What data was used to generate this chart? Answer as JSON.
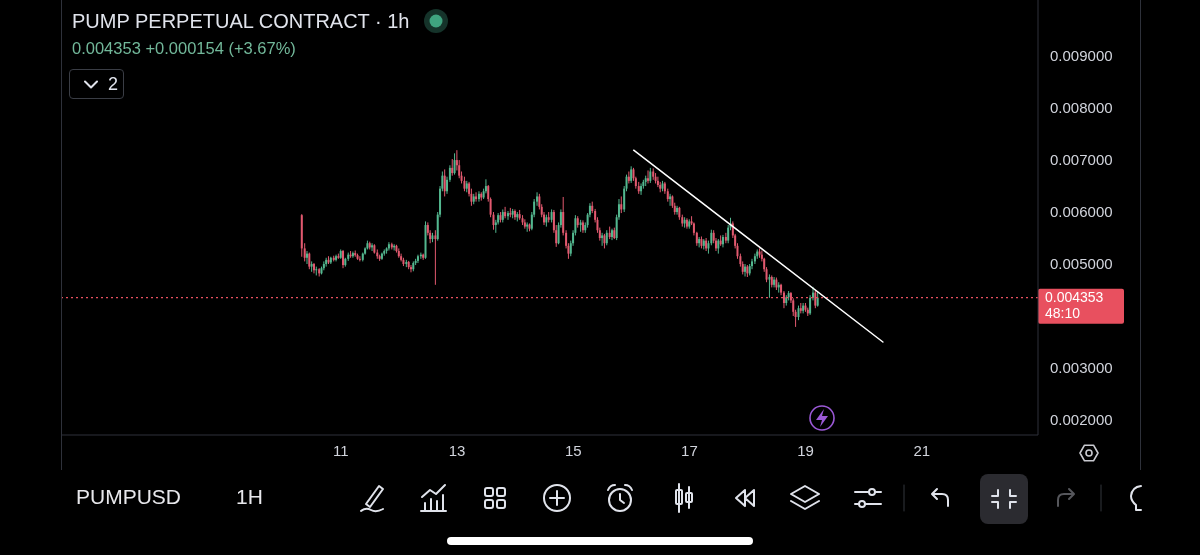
{
  "chart_data": {
    "type": "candlestick",
    "title": "PUMP PERPETUAL CONTRACT · 1h",
    "subtitle": "0.004353 +0.000154 (+3.67%)",
    "annotations": [
      "2",
      "PUMPUSD",
      "1H"
    ],
    "xlim": [
      6.2,
      23
    ],
    "xticks": [
      11,
      13,
      15,
      17,
      19,
      21
    ],
    "ylim": [
      0.00171,
      0.01008
    ],
    "yticks": [
      {
        "value": 0.002,
        "label": "0.002000"
      },
      {
        "value": 0.003,
        "label": "0.003000"
      },
      {
        "value": 0.005,
        "label": "0.005000"
      },
      {
        "value": 0.006,
        "label": "0.006000"
      },
      {
        "value": 0.007,
        "label": "0.007000"
      },
      {
        "value": 0.008,
        "label": "0.008000"
      },
      {
        "value": 0.009,
        "label": "0.009000"
      }
    ],
    "ref_lines": [
      {
        "axis": "y",
        "value": 0.004353,
        "label": "0.004353 48:10",
        "color": "#e8505f",
        "line_style": "dotted"
      }
    ],
    "series": [
      {
        "x": [
          10.33,
          10.38,
          10.42,
          10.46,
          10.5,
          10.54,
          10.58,
          10.63,
          10.67,
          10.71,
          10.75,
          10.79,
          10.83,
          10.88,
          10.92,
          10.96,
          11,
          11.04,
          11.08,
          11.13,
          11.17,
          11.21,
          11.25,
          11.29,
          11.33,
          11.38,
          11.42,
          11.46,
          11.5,
          11.54,
          11.58,
          11.63,
          11.67,
          11.71,
          11.75,
          11.79,
          11.83,
          11.88,
          11.92,
          11.96,
          12,
          12.04,
          12.08,
          12.13,
          12.17,
          12.21,
          12.25,
          12.29,
          12.33,
          12.38,
          12.42,
          12.46,
          12.5,
          12.54,
          12.58,
          12.63,
          12.67,
          12.71,
          12.75,
          12.79,
          12.83,
          12.88,
          12.92,
          12.96,
          13,
          13.04,
          13.08,
          13.13,
          13.17,
          13.21,
          13.25,
          13.29,
          13.33,
          13.38,
          13.42,
          13.46,
          13.5,
          13.54,
          13.58,
          13.63,
          13.67,
          13.71,
          13.75,
          13.79,
          13.83,
          13.88,
          13.92,
          13.96,
          14,
          14.04,
          14.08,
          14.13,
          14.17,
          14.21,
          14.25,
          14.29,
          14.33,
          14.38,
          14.42,
          14.46,
          14.5,
          14.54,
          14.58,
          14.63,
          14.67,
          14.71,
          14.75,
          14.79,
          14.83,
          14.88,
          14.92,
          14.96,
          15,
          15.04,
          15.08,
          15.13,
          15.17,
          15.21,
          15.25,
          15.29,
          15.33,
          15.38,
          15.42,
          15.46,
          15.5,
          15.54,
          15.58,
          15.63,
          15.67,
          15.71,
          15.75,
          15.79,
          15.83,
          15.88,
          15.92,
          15.96,
          16,
          16.04,
          16.08,
          16.13,
          16.17,
          16.21,
          16.25,
          16.29,
          16.33,
          16.38,
          16.42,
          16.46,
          16.5,
          16.54,
          16.58,
          16.63,
          16.67,
          16.71,
          16.75,
          16.79,
          16.83,
          16.88,
          16.92,
          16.96,
          17,
          17.04,
          17.08,
          17.13,
          17.17,
          17.21,
          17.25,
          17.29,
          17.33,
          17.38,
          17.42,
          17.46,
          17.5,
          17.54,
          17.58,
          17.63,
          17.67,
          17.71,
          17.75,
          17.79,
          17.83,
          17.88,
          17.92,
          17.96,
          18,
          18.04,
          18.08,
          18.13,
          18.17,
          18.21,
          18.25,
          18.29,
          18.33,
          18.38,
          18.42,
          18.46,
          18.5,
          18.54,
          18.58,
          18.63,
          18.67,
          18.71,
          18.75,
          18.79,
          18.83,
          18.88,
          18.92,
          18.96,
          19,
          19.04,
          19.08,
          19.13,
          19.17,
          19.21
        ],
        "ohlc": [
          [
            0.00594,
            0.00596,
            0.00514,
            0.0053
          ],
          [
            0.0053,
            0.0054,
            0.00505,
            0.00512
          ],
          [
            0.00512,
            0.00525,
            0.005,
            0.0052
          ],
          [
            0.0052,
            0.00522,
            0.0049,
            0.00495
          ],
          [
            0.00495,
            0.00505,
            0.00485,
            0.005
          ],
          [
            0.005,
            0.00502,
            0.00482,
            0.00488
          ],
          [
            0.00488,
            0.00495,
            0.00478,
            0.0049
          ],
          [
            0.0049,
            0.00492,
            0.00476,
            0.00482
          ],
          [
            0.00482,
            0.00495,
            0.0048,
            0.00492
          ],
          [
            0.00492,
            0.00505,
            0.00488,
            0.005
          ],
          [
            0.005,
            0.00512,
            0.00495,
            0.00508
          ],
          [
            0.00508,
            0.00515,
            0.005,
            0.00503
          ],
          [
            0.00503,
            0.00514,
            0.005,
            0.00512
          ],
          [
            0.00512,
            0.00516,
            0.00505,
            0.00508
          ],
          [
            0.00508,
            0.00518,
            0.00505,
            0.00515
          ],
          [
            0.00515,
            0.0052,
            0.0051,
            0.00512
          ],
          [
            0.00512,
            0.00528,
            0.0051,
            0.00525
          ],
          [
            0.00525,
            0.00527,
            0.00492,
            0.00498
          ],
          [
            0.00498,
            0.00512,
            0.00495,
            0.0051
          ],
          [
            0.0051,
            0.00522,
            0.00506,
            0.00518
          ],
          [
            0.00518,
            0.00525,
            0.00512,
            0.00515
          ],
          [
            0.00515,
            0.00524,
            0.00512,
            0.00521
          ],
          [
            0.00521,
            0.00526,
            0.00514,
            0.00517
          ],
          [
            0.00517,
            0.0052,
            0.00508,
            0.0051
          ],
          [
            0.0051,
            0.00515,
            0.00505,
            0.00508
          ],
          [
            0.00508,
            0.00522,
            0.00505,
            0.0052
          ],
          [
            0.0052,
            0.00532,
            0.00518,
            0.0053
          ],
          [
            0.0053,
            0.00545,
            0.00528,
            0.0054
          ],
          [
            0.0054,
            0.00543,
            0.00528,
            0.00532
          ],
          [
            0.00532,
            0.0054,
            0.00525,
            0.00536
          ],
          [
            0.00536,
            0.00538,
            0.0052,
            0.00522
          ],
          [
            0.00522,
            0.00528,
            0.0051,
            0.00515
          ],
          [
            0.00515,
            0.00518,
            0.00506,
            0.0051
          ],
          [
            0.0051,
            0.00522,
            0.00508,
            0.0052
          ],
          [
            0.0052,
            0.00528,
            0.00516,
            0.00525
          ],
          [
            0.00525,
            0.00532,
            0.0052,
            0.0053
          ],
          [
            0.0053,
            0.00542,
            0.00526,
            0.00538
          ],
          [
            0.00538,
            0.00541,
            0.00528,
            0.00532
          ],
          [
            0.00532,
            0.00538,
            0.00526,
            0.00535
          ],
          [
            0.00535,
            0.00537,
            0.00522,
            0.00525
          ],
          [
            0.00525,
            0.0053,
            0.00512,
            0.00515
          ],
          [
            0.00515,
            0.0052,
            0.00505,
            0.00508
          ],
          [
            0.00508,
            0.00512,
            0.00496,
            0.005
          ],
          [
            0.005,
            0.00508,
            0.00494,
            0.00504
          ],
          [
            0.00504,
            0.00506,
            0.0049,
            0.00494
          ],
          [
            0.00494,
            0.00498,
            0.00484,
            0.0049
          ],
          [
            0.0049,
            0.00505,
            0.00486,
            0.00502
          ],
          [
            0.00502,
            0.0051,
            0.00498,
            0.00506
          ],
          [
            0.00506,
            0.00518,
            0.00502,
            0.00515
          ],
          [
            0.00515,
            0.00522,
            0.0051,
            0.00518
          ],
          [
            0.00518,
            0.0052,
            0.00508,
            0.00512
          ],
          [
            0.00512,
            0.00582,
            0.0051,
            0.00575
          ],
          [
            0.00575,
            0.0058,
            0.00555,
            0.0056
          ],
          [
            0.0056,
            0.00565,
            0.0054,
            0.00548
          ],
          [
            0.00548,
            0.0056,
            0.00542,
            0.00555
          ],
          [
            0.00555,
            0.00565,
            0.0046,
            0.00548
          ],
          [
            0.00548,
            0.006,
            0.00545,
            0.00595
          ],
          [
            0.00595,
            0.0065,
            0.0059,
            0.00645
          ],
          [
            0.00645,
            0.00678,
            0.0064,
            0.0067
          ],
          [
            0.0067,
            0.00682,
            0.0063,
            0.0064
          ],
          [
            0.0064,
            0.00668,
            0.00635,
            0.00662
          ],
          [
            0.00662,
            0.0069,
            0.00658,
            0.00685
          ],
          [
            0.00685,
            0.00702,
            0.0067,
            0.00675
          ],
          [
            0.00675,
            0.00713,
            0.00672,
            0.007
          ],
          [
            0.007,
            0.00719,
            0.0068,
            0.0069
          ],
          [
            0.0069,
            0.007,
            0.00665,
            0.0067
          ],
          [
            0.0067,
            0.00678,
            0.00655,
            0.0066
          ],
          [
            0.0066,
            0.00668,
            0.0064,
            0.00645
          ],
          [
            0.00645,
            0.0066,
            0.00638,
            0.00655
          ],
          [
            0.00655,
            0.00658,
            0.0063,
            0.00635
          ],
          [
            0.00635,
            0.00645,
            0.00612,
            0.0062
          ],
          [
            0.0062,
            0.00635,
            0.00615,
            0.0063
          ],
          [
            0.0063,
            0.00638,
            0.0062,
            0.00625
          ],
          [
            0.00625,
            0.0064,
            0.0062,
            0.00635
          ],
          [
            0.00635,
            0.00638,
            0.00622,
            0.00628
          ],
          [
            0.00628,
            0.00645,
            0.00625,
            0.0064
          ],
          [
            0.0064,
            0.00663,
            0.00636,
            0.0065
          ],
          [
            0.0065,
            0.00652,
            0.0062,
            0.00625
          ],
          [
            0.00625,
            0.00628,
            0.0059,
            0.00595
          ],
          [
            0.00595,
            0.006,
            0.00566,
            0.00575
          ],
          [
            0.00575,
            0.00585,
            0.0056,
            0.0058
          ],
          [
            0.0058,
            0.00598,
            0.00576,
            0.00594
          ],
          [
            0.00594,
            0.006,
            0.0058,
            0.00585
          ],
          [
            0.00585,
            0.00605,
            0.0058,
            0.006
          ],
          [
            0.006,
            0.0061,
            0.00588,
            0.00592
          ],
          [
            0.00592,
            0.00602,
            0.00585,
            0.00598
          ],
          [
            0.00598,
            0.00608,
            0.0059,
            0.00595
          ],
          [
            0.00595,
            0.00606,
            0.00588,
            0.00602
          ],
          [
            0.00602,
            0.00605,
            0.00585,
            0.0059
          ],
          [
            0.0059,
            0.006,
            0.00582,
            0.00596
          ],
          [
            0.00596,
            0.00604,
            0.00585,
            0.00588
          ],
          [
            0.00588,
            0.00594,
            0.00575,
            0.0058
          ],
          [
            0.0058,
            0.00586,
            0.00568,
            0.00572
          ],
          [
            0.00572,
            0.0058,
            0.00562,
            0.00576
          ],
          [
            0.00576,
            0.00578,
            0.00563,
            0.00568
          ],
          [
            0.00568,
            0.006,
            0.00565,
            0.00595
          ],
          [
            0.00595,
            0.00625,
            0.0059,
            0.0062
          ],
          [
            0.0062,
            0.00638,
            0.00612,
            0.0063
          ],
          [
            0.0063,
            0.00635,
            0.00605,
            0.0061
          ],
          [
            0.0061,
            0.00615,
            0.0059,
            0.00595
          ],
          [
            0.00595,
            0.006,
            0.00575,
            0.0058
          ],
          [
            0.0058,
            0.00595,
            0.00572,
            0.0059
          ],
          [
            0.0059,
            0.006,
            0.0058,
            0.00585
          ],
          [
            0.00585,
            0.00605,
            0.0058,
            0.006
          ],
          [
            0.006,
            0.00604,
            0.0056,
            0.00565
          ],
          [
            0.00565,
            0.00575,
            0.00533,
            0.0054
          ],
          [
            0.0054,
            0.0058,
            0.00538,
            0.00575
          ],
          [
            0.00575,
            0.00605,
            0.0057,
            0.006
          ],
          [
            0.006,
            0.00629,
            0.00555,
            0.0056
          ],
          [
            0.0056,
            0.00565,
            0.0053,
            0.00535
          ],
          [
            0.00535,
            0.0054,
            0.0051,
            0.0052
          ],
          [
            0.0052,
            0.00545,
            0.00515,
            0.0054
          ],
          [
            0.0054,
            0.00565,
            0.00535,
            0.0056
          ],
          [
            0.0056,
            0.00594,
            0.00555,
            0.00588
          ],
          [
            0.00588,
            0.00592,
            0.0057,
            0.00575
          ],
          [
            0.00575,
            0.00585,
            0.00562,
            0.0058
          ],
          [
            0.0058,
            0.00584,
            0.0056,
            0.00565
          ],
          [
            0.00565,
            0.0058,
            0.0056,
            0.00575
          ],
          [
            0.00575,
            0.00598,
            0.0057,
            0.00595
          ],
          [
            0.00595,
            0.00617,
            0.0059,
            0.00612
          ],
          [
            0.00612,
            0.0062,
            0.00598,
            0.00602
          ],
          [
            0.00602,
            0.00606,
            0.0058,
            0.00585
          ],
          [
            0.00585,
            0.0059,
            0.0056,
            0.00565
          ],
          [
            0.00565,
            0.0057,
            0.00545,
            0.0055
          ],
          [
            0.0055,
            0.0056,
            0.00535,
            0.00555
          ],
          [
            0.00555,
            0.00558,
            0.0053,
            0.0054
          ],
          [
            0.0054,
            0.00565,
            0.00536,
            0.0056
          ],
          [
            0.0056,
            0.00572,
            0.00548,
            0.00552
          ],
          [
            0.00552,
            0.00568,
            0.00546,
            0.00565
          ],
          [
            0.00565,
            0.0057,
            0.00548,
            0.0055
          ],
          [
            0.0055,
            0.00595,
            0.00546,
            0.0059
          ],
          [
            0.0059,
            0.00625,
            0.00585,
            0.00615
          ],
          [
            0.00615,
            0.0063,
            0.00598,
            0.00605
          ],
          [
            0.00605,
            0.0065,
            0.006,
            0.00645
          ],
          [
            0.00645,
            0.00672,
            0.0064,
            0.00668
          ],
          [
            0.00668,
            0.00678,
            0.00655,
            0.0066
          ],
          [
            0.0066,
            0.00688,
            0.00656,
            0.00682
          ],
          [
            0.00682,
            0.00685,
            0.0066,
            0.00665
          ],
          [
            0.00665,
            0.00668,
            0.00645,
            0.0065
          ],
          [
            0.0065,
            0.00658,
            0.00635,
            0.0064
          ],
          [
            0.0064,
            0.00655,
            0.00633,
            0.0065
          ],
          [
            0.0065,
            0.00662,
            0.00645,
            0.00658
          ],
          [
            0.00658,
            0.0067,
            0.0065,
            0.00665
          ],
          [
            0.00665,
            0.0068,
            0.00655,
            0.0066
          ],
          [
            0.0066,
            0.00685,
            0.00656,
            0.00678
          ],
          [
            0.00678,
            0.00684,
            0.00662,
            0.00668
          ],
          [
            0.00668,
            0.00675,
            0.00655,
            0.0066
          ],
          [
            0.0066,
            0.00668,
            0.00648,
            0.00652
          ],
          [
            0.00652,
            0.00658,
            0.00638,
            0.00645
          ],
          [
            0.00645,
            0.0066,
            0.0064,
            0.00655
          ],
          [
            0.00655,
            0.00658,
            0.00635,
            0.0064
          ],
          [
            0.0064,
            0.00645,
            0.0062,
            0.00625
          ],
          [
            0.00625,
            0.00635,
            0.00612,
            0.0063
          ],
          [
            0.0063,
            0.00632,
            0.00608,
            0.00612
          ],
          [
            0.00612,
            0.00618,
            0.00595,
            0.006
          ],
          [
            0.006,
            0.00612,
            0.00595,
            0.00608
          ],
          [
            0.00608,
            0.0061,
            0.00585,
            0.0059
          ],
          [
            0.0059,
            0.00595,
            0.00572,
            0.00578
          ],
          [
            0.00578,
            0.0059,
            0.0057,
            0.00585
          ],
          [
            0.00585,
            0.00588,
            0.00568,
            0.00572
          ],
          [
            0.00572,
            0.00586,
            0.00568,
            0.00582
          ],
          [
            0.00582,
            0.00592,
            0.00575,
            0.00578
          ],
          [
            0.00578,
            0.0058,
            0.00555,
            0.0056
          ],
          [
            0.0056,
            0.00562,
            0.00535,
            0.0054
          ],
          [
            0.0054,
            0.00552,
            0.00532,
            0.00548
          ],
          [
            0.00548,
            0.00553,
            0.0053,
            0.00535
          ],
          [
            0.00535,
            0.00548,
            0.00528,
            0.00545
          ],
          [
            0.00545,
            0.0055,
            0.00525,
            0.0053
          ],
          [
            0.0053,
            0.00545,
            0.0052,
            0.0054
          ],
          [
            0.0054,
            0.00566,
            0.00536,
            0.0056
          ],
          [
            0.0056,
            0.00565,
            0.0054,
            0.00545
          ],
          [
            0.00545,
            0.0055,
            0.00525,
            0.0053
          ],
          [
            0.0053,
            0.00548,
            0.0052,
            0.00545
          ],
          [
            0.00545,
            0.00555,
            0.00535,
            0.00538
          ],
          [
            0.00538,
            0.00556,
            0.00532,
            0.00552
          ],
          [
            0.00552,
            0.0056,
            0.0054,
            0.00545
          ],
          [
            0.00545,
            0.00575,
            0.0054,
            0.0057
          ],
          [
            0.0057,
            0.00589,
            0.00565,
            0.00578
          ],
          [
            0.00578,
            0.00582,
            0.0055,
            0.00555
          ],
          [
            0.00555,
            0.00558,
            0.0053,
            0.00535
          ],
          [
            0.00535,
            0.0054,
            0.0051,
            0.00515
          ],
          [
            0.00515,
            0.0052,
            0.00495,
            0.005
          ],
          [
            0.005,
            0.00505,
            0.0048,
            0.00485
          ],
          [
            0.00485,
            0.005,
            0.00476,
            0.00495
          ],
          [
            0.00495,
            0.00498,
            0.00475,
            0.00482
          ],
          [
            0.00482,
            0.005,
            0.00478,
            0.00496
          ],
          [
            0.00496,
            0.0051,
            0.0049,
            0.00505
          ],
          [
            0.00505,
            0.0052,
            0.005,
            0.00515
          ],
          [
            0.00515,
            0.00528,
            0.0051,
            0.00524
          ],
          [
            0.00524,
            0.0053,
            0.00512,
            0.00518
          ],
          [
            0.00518,
            0.00526,
            0.00505,
            0.0051
          ],
          [
            0.0051,
            0.00512,
            0.00485,
            0.0049
          ],
          [
            0.0049,
            0.00494,
            0.00465,
            0.0047
          ],
          [
            0.0047,
            0.0048,
            0.00435,
            0.00475
          ],
          [
            0.00475,
            0.00478,
            0.00455,
            0.0046
          ],
          [
            0.0046,
            0.00475,
            0.00455,
            0.0047
          ],
          [
            0.0047,
            0.00474,
            0.0045,
            0.00455
          ],
          [
            0.00455,
            0.00465,
            0.00445,
            0.0046
          ],
          [
            0.0046,
            0.00462,
            0.0044,
            0.00445
          ],
          [
            0.00445,
            0.00448,
            0.00415,
            0.00425
          ],
          [
            0.00425,
            0.0044,
            0.0042,
            0.00436
          ],
          [
            0.00436,
            0.00448,
            0.0043,
            0.00444
          ],
          [
            0.00444,
            0.00446,
            0.00425,
            0.0043
          ],
          [
            0.0043,
            0.00434,
            0.004,
            0.00408
          ],
          [
            0.00408,
            0.00412,
            0.00379,
            0.00398
          ],
          [
            0.00398,
            0.0042,
            0.00392,
            0.00415
          ],
          [
            0.00415,
            0.00425,
            0.00405,
            0.0041
          ],
          [
            0.0041,
            0.00425,
            0.00405,
            0.0042
          ],
          [
            0.0042,
            0.00425,
            0.00408,
            0.00412
          ],
          [
            0.00412,
            0.00416,
            0.004,
            0.00405
          ],
          [
            0.00405,
            0.0044,
            0.00402,
            0.00435
          ],
          [
            0.00435,
            0.00456,
            0.0043,
            0.00445
          ],
          [
            0.00445,
            0.0045,
            0.00415,
            0.0042
          ],
          [
            0.004199,
            0.00448,
            0.00418,
            0.004353
          ]
        ],
        "colors": [
          "#e2596f",
          "#e2596f",
          "#53b78f",
          "#e2596f",
          "#53b78f",
          "#e2596f",
          "#53b78f",
          "#e2596f",
          "#53b78f",
          "#53b78f",
          "#53b78f",
          "#e2596f",
          "#53b78f",
          "#e2596f",
          "#53b78f",
          "#e2596f",
          "#53b78f",
          "#e2596f",
          "#53b78f",
          "#53b78f",
          "#e2596f",
          "#53b78f",
          "#e2596f",
          "#e2596f",
          "#e2596f",
          "#53b78f",
          "#53b78f",
          "#53b78f",
          "#e2596f",
          "#53b78f",
          "#e2596f",
          "#e2596f",
          "#e2596f",
          "#53b78f",
          "#53b78f",
          "#53b78f",
          "#53b78f",
          "#e2596f",
          "#53b78f",
          "#e2596f",
          "#e2596f",
          "#e2596f",
          "#e2596f",
          "#53b78f",
          "#e2596f",
          "#e2596f",
          "#53b78f",
          "#53b78f",
          "#53b78f",
          "#53b78f",
          "#e2596f",
          "#53b78f",
          "#e2596f",
          "#e2596f",
          "#53b78f",
          "#e2596f",
          "#53b78f",
          "#53b78f",
          "#53b78f",
          "#e2596f",
          "#53b78f",
          "#53b78f",
          "#e2596f",
          "#53b78f",
          "#e2596f",
          "#e2596f",
          "#e2596f",
          "#e2596f",
          "#53b78f",
          "#e2596f",
          "#e2596f",
          "#53b78f",
          "#e2596f",
          "#53b78f",
          "#e2596f",
          "#53b78f",
          "#53b78f",
          "#e2596f",
          "#e2596f",
          "#e2596f",
          "#53b78f",
          "#53b78f",
          "#e2596f",
          "#53b78f",
          "#e2596f",
          "#53b78f",
          "#e2596f",
          "#53b78f",
          "#e2596f",
          "#53b78f",
          "#e2596f",
          "#e2596f",
          "#e2596f",
          "#53b78f",
          "#e2596f",
          "#53b78f",
          "#53b78f",
          "#53b78f",
          "#e2596f",
          "#e2596f",
          "#e2596f",
          "#53b78f",
          "#e2596f",
          "#53b78f",
          "#e2596f",
          "#e2596f",
          "#53b78f",
          "#53b78f",
          "#e2596f",
          "#e2596f",
          "#e2596f",
          "#53b78f",
          "#53b78f",
          "#53b78f",
          "#e2596f",
          "#53b78f",
          "#e2596f",
          "#53b78f",
          "#53b78f",
          "#53b78f",
          "#e2596f",
          "#e2596f",
          "#e2596f",
          "#e2596f",
          "#53b78f",
          "#e2596f",
          "#53b78f",
          "#e2596f",
          "#53b78f",
          "#e2596f",
          "#53b78f",
          "#53b78f",
          "#e2596f",
          "#53b78f",
          "#53b78f",
          "#e2596f",
          "#53b78f",
          "#e2596f",
          "#e2596f",
          "#e2596f",
          "#53b78f",
          "#53b78f",
          "#53b78f",
          "#e2596f",
          "#53b78f",
          "#e2596f",
          "#e2596f",
          "#e2596f",
          "#e2596f",
          "#53b78f",
          "#e2596f",
          "#e2596f",
          "#53b78f",
          "#e2596f",
          "#e2596f",
          "#53b78f",
          "#e2596f",
          "#e2596f",
          "#53b78f",
          "#e2596f",
          "#53b78f",
          "#e2596f",
          "#e2596f",
          "#e2596f",
          "#53b78f",
          "#e2596f",
          "#53b78f",
          "#e2596f",
          "#53b78f",
          "#53b78f",
          "#e2596f",
          "#e2596f",
          "#53b78f",
          "#e2596f",
          "#53b78f",
          "#e2596f",
          "#53b78f",
          "#53b78f",
          "#e2596f",
          "#e2596f",
          "#e2596f",
          "#e2596f",
          "#e2596f",
          "#53b78f",
          "#e2596f",
          "#53b78f",
          "#53b78f",
          "#53b78f",
          "#53b78f",
          "#e2596f",
          "#e2596f",
          "#e2596f",
          "#e2596f",
          "#53b78f",
          "#e2596f",
          "#53b78f",
          "#e2596f",
          "#53b78f",
          "#e2596f",
          "#e2596f",
          "#53b78f",
          "#53b78f",
          "#e2596f",
          "#e2596f",
          "#e2596f",
          "#53b78f",
          "#e2596f",
          "#53b78f",
          "#e2596f",
          "#e2596f",
          "#53b78f",
          "#53b78f",
          "#e2596f",
          "#53b78f"
        ]
      },
      {
        "type": "line",
        "x": [
          16.04,
          20.33
        ],
        "values": [
          0.00719,
          0.0035
        ],
        "color": "#ffffff"
      }
    ]
  }
}
